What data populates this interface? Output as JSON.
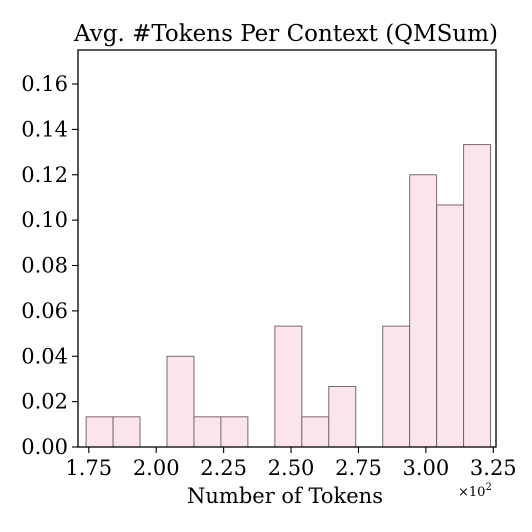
{
  "chart_data": {
    "type": "bar",
    "title": "Avg. #Tokens Per Context (QMSum)",
    "xlabel": "Number of Tokens",
    "x_multiplier": "×10",
    "x_multiplier_exp": "2",
    "ylabel": "",
    "xlim": [
      1.71,
      3.26
    ],
    "ylim": [
      0,
      0.175
    ],
    "bin_width": 0.1,
    "bars": [
      {
        "x0": 1.74,
        "x1": 1.84,
        "value": 0.0133
      },
      {
        "x0": 1.84,
        "x1": 1.94,
        "value": 0.0133
      },
      {
        "x0": 1.94,
        "x1": 2.04,
        "value": 0.0
      },
      {
        "x0": 2.04,
        "x1": 2.14,
        "value": 0.04
      },
      {
        "x0": 2.14,
        "x1": 2.24,
        "value": 0.0133
      },
      {
        "x0": 2.24,
        "x1": 2.34,
        "value": 0.0133
      },
      {
        "x0": 2.34,
        "x1": 2.44,
        "value": 0.0
      },
      {
        "x0": 2.44,
        "x1": 2.54,
        "value": 0.0533
      },
      {
        "x0": 2.54,
        "x1": 2.64,
        "value": 0.0133
      },
      {
        "x0": 2.64,
        "x1": 2.74,
        "value": 0.0267
      },
      {
        "x0": 2.74,
        "x1": 2.84,
        "value": 0.0
      },
      {
        "x0": 2.84,
        "x1": 2.94,
        "value": 0.0533
      },
      {
        "x0": 2.94,
        "x1": 3.04,
        "value": 0.12
      },
      {
        "x0": 3.04,
        "x1": 3.14,
        "value": 0.1067
      },
      {
        "x0": 3.14,
        "x1": 3.24,
        "value": 0.1333
      }
    ],
    "xticks": [
      "1.75",
      "2.00",
      "2.25",
      "2.50",
      "2.75",
      "3.00",
      "3.25"
    ],
    "xtick_values": [
      1.75,
      2.0,
      2.25,
      2.5,
      2.75,
      3.0,
      3.25
    ],
    "yticks": [
      "0.00",
      "0.02",
      "0.04",
      "0.06",
      "0.08",
      "0.10",
      "0.12",
      "0.14",
      "0.16"
    ],
    "ytick_values": [
      0.0,
      0.02,
      0.04,
      0.06,
      0.08,
      0.1,
      0.12,
      0.14,
      0.16
    ],
    "grid": false,
    "legend": "none"
  }
}
